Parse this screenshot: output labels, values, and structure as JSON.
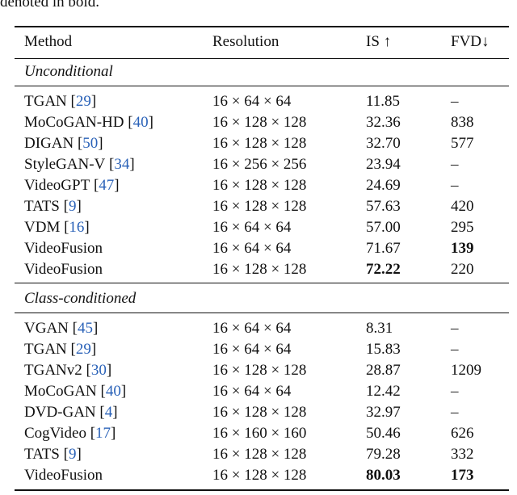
{
  "caption_fragment": "denoted in bold.",
  "table": {
    "header": [
      "Method",
      "Resolution",
      "IS ↑",
      "FVD↓"
    ],
    "sections": [
      {
        "title": "Unconditional",
        "rows": [
          {
            "method": "TGAN",
            "cite": "[29]",
            "resolution": "16 × 64 × 64",
            "is": "11.85",
            "fvd": "–"
          },
          {
            "method": "MoCoGAN-HD",
            "cite": "[40]",
            "resolution": "16 × 128 × 128",
            "is": "32.36",
            "fvd": "838"
          },
          {
            "method": "DIGAN",
            "cite": "[50]",
            "resolution": "16 × 128 × 128",
            "is": "32.70",
            "fvd": "577"
          },
          {
            "method": "StyleGAN-V",
            "cite": "[34]",
            "resolution": "16 × 256 × 256",
            "is": "23.94",
            "fvd": "–"
          },
          {
            "method": "VideoGPT",
            "cite": "[47]",
            "resolution": "16 × 128 × 128",
            "is": "24.69",
            "fvd": "–"
          },
          {
            "method": "TATS",
            "cite": "[9]",
            "resolution": "16 × 128 × 128",
            "is": "57.63",
            "fvd": "420"
          },
          {
            "method": "VDM",
            "cite": "[16]",
            "resolution": "16 × 64 × 64",
            "is": "57.00",
            "fvd": "295"
          },
          {
            "method": "VideoFusion",
            "resolution": "16 × 64 × 64",
            "is": "71.67",
            "fvd": "139",
            "bold": [
              "fvd"
            ]
          },
          {
            "method": "VideoFusion",
            "resolution": "16 × 128 × 128",
            "is": "72.22",
            "fvd": "220",
            "bold": [
              "is"
            ]
          }
        ]
      },
      {
        "title": "Class-conditioned",
        "rows": [
          {
            "method": "VGAN",
            "cite": "[45]",
            "resolution": "16 × 64 × 64",
            "is": "8.31",
            "fvd": "–"
          },
          {
            "method": "TGAN",
            "cite": "[29]",
            "resolution": "16 × 64 × 64",
            "is": "15.83",
            "fvd": "–"
          },
          {
            "method": "TGANv2",
            "cite": "[30]",
            "resolution": "16 × 128 × 128",
            "is": "28.87",
            "fvd": "1209"
          },
          {
            "method": "MoCoGAN",
            "cite": "[40]",
            "resolution": "16 × 64 × 64",
            "is": "12.42",
            "fvd": "–"
          },
          {
            "method": "DVD-GAN",
            "cite": "[4]",
            "resolution": "16 × 128 × 128",
            "is": "32.97",
            "fvd": "–"
          },
          {
            "method": "CogVideo",
            "cite": "[17]",
            "resolution": "16 × 160 × 160",
            "is": "50.46",
            "fvd": "626"
          },
          {
            "method": "TATS",
            "cite": "[9]",
            "resolution": "16 × 128 × 128",
            "is": "79.28",
            "fvd": "332"
          },
          {
            "method": "VideoFusion",
            "resolution": "16 × 128 × 128",
            "is": "80.03",
            "fvd": "173",
            "bold": [
              "is",
              "fvd"
            ]
          }
        ]
      }
    ]
  }
}
